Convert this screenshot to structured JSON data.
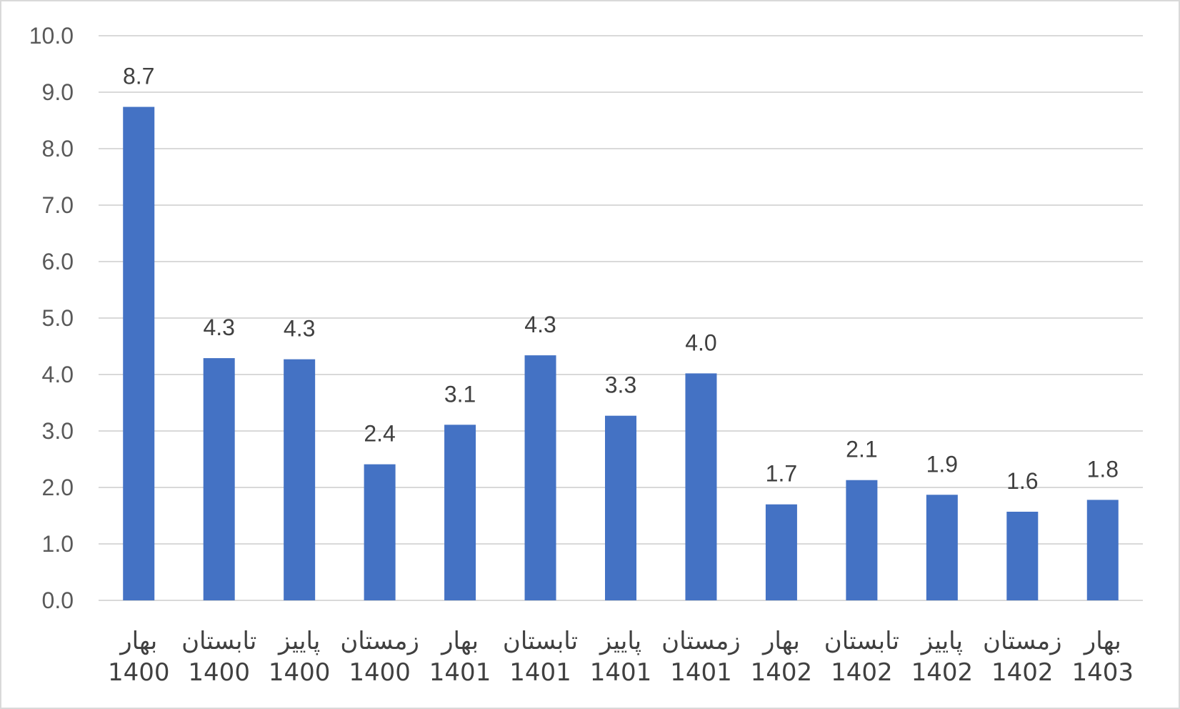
{
  "chart_data": {
    "type": "bar",
    "categories": [
      [
        "بهار",
        "1400"
      ],
      [
        "تابستان",
        "1400"
      ],
      [
        "پاییز",
        "1400"
      ],
      [
        "زمستان",
        "1400"
      ],
      [
        "بهار",
        "1401"
      ],
      [
        "تابستان",
        "1401"
      ],
      [
        "پاییز",
        "1401"
      ],
      [
        "زمستان",
        "1401"
      ],
      [
        "بهار",
        "1402"
      ],
      [
        "تابستان",
        "1402"
      ],
      [
        "پاییز",
        "1402"
      ],
      [
        "زمستان",
        "1402"
      ],
      [
        "بهار",
        "1403"
      ]
    ],
    "values": [
      8.74,
      4.29,
      4.27,
      2.41,
      3.11,
      4.34,
      3.27,
      4.02,
      1.7,
      2.13,
      1.87,
      1.57,
      1.78
    ],
    "data_labels": [
      "8.7",
      "4.3",
      "4.3",
      "2.4",
      "3.1",
      "4.3",
      "3.3",
      "4.0",
      "1.7",
      "2.1",
      "1.9",
      "1.6",
      "1.8"
    ],
    "ylim": [
      0,
      10
    ],
    "y_ticks": [
      "0.0",
      "1.0",
      "2.0",
      "3.0",
      "4.0",
      "5.0",
      "6.0",
      "7.0",
      "8.0",
      "9.0",
      "10.0"
    ],
    "title": "",
    "xlabel": "",
    "ylabel": "",
    "grid": true,
    "legend": "none",
    "colors": {
      "bar": "#4472c4",
      "grid": "#d9d9d9",
      "text": "#404040",
      "tick": "#595959"
    }
  }
}
